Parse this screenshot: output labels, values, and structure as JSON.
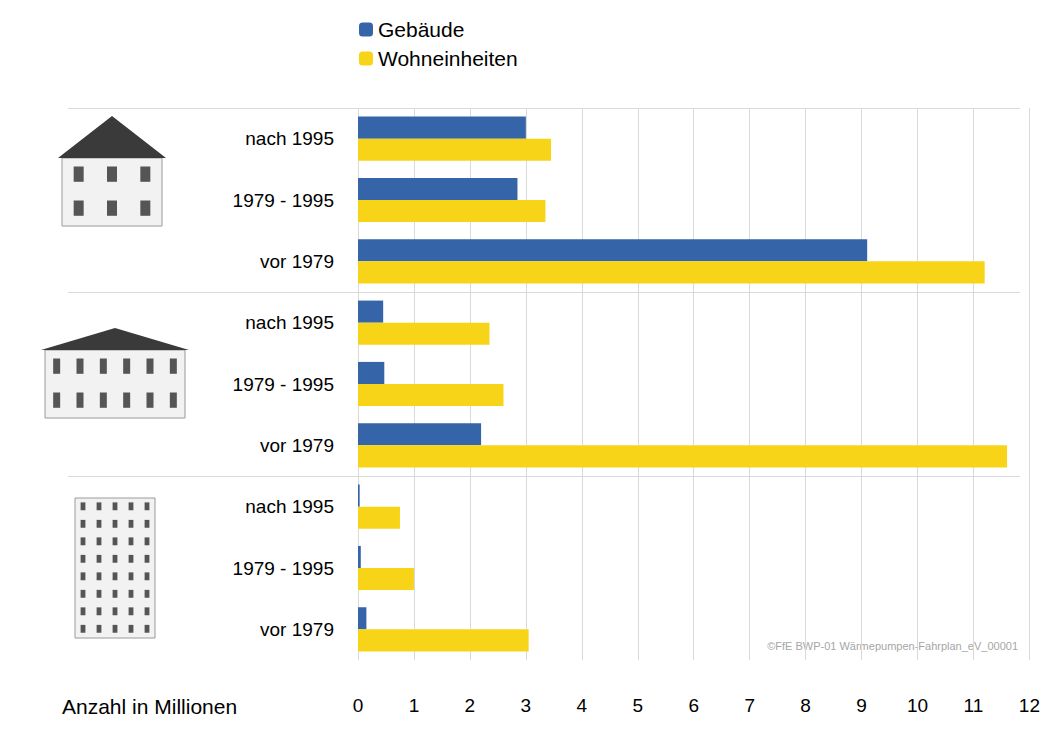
{
  "chart_data": {
    "type": "bar",
    "orientation": "horizontal",
    "categories": [
      "nach 1995",
      "1979 - 1995",
      "vor 1979",
      "nach 1995",
      "1979 - 1995",
      "vor 1979",
      "nach 1995",
      "1979 - 1995",
      "vor 1979"
    ],
    "series": [
      {
        "name": "Gebäude",
        "color": "#3565a8",
        "values": [
          3.0,
          2.85,
          9.1,
          0.45,
          0.47,
          2.2,
          0.03,
          0.05,
          0.15
        ]
      },
      {
        "name": "Wohneinheiten",
        "color": "#f7d417",
        "values": [
          3.45,
          3.35,
          11.2,
          2.35,
          2.6,
          11.6,
          0.75,
          1.0,
          3.05
        ]
      }
    ],
    "xlabel": "Anzahl in Millionen",
    "xlim": [
      0,
      12
    ],
    "xticks": [
      0,
      1,
      2,
      3,
      4,
      5,
      6,
      7,
      8,
      9,
      10,
      11,
      12
    ],
    "grid": true,
    "legend": "top",
    "annotations": [
      "©FfE BWP-01 Wärmepumpen-Fahrplan_eV_00001"
    ]
  }
}
